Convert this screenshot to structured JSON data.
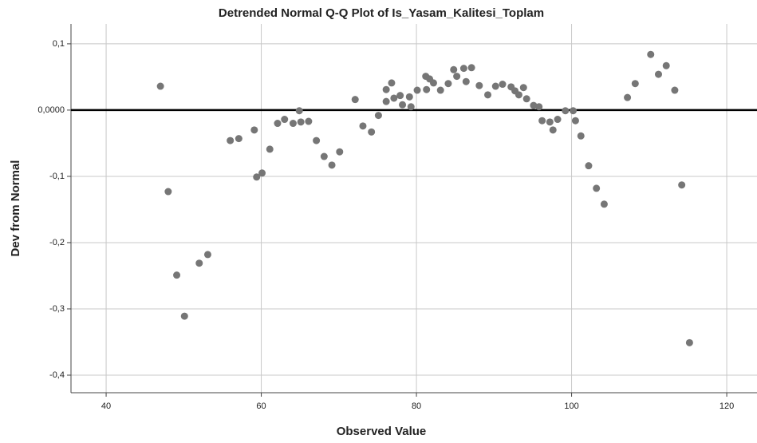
{
  "chart_data": {
    "type": "scatter",
    "title": "Detrended Normal Q-Q Plot of Is_Yasam_Kalitesi_Toplam",
    "x_label": "Observed Value",
    "y_label": "Dev from Normal",
    "color": "#767676",
    "grid": true,
    "reference_y": 0,
    "xlim": [
      35.47,
      123.9
    ],
    "ylim": [
      -0.4265,
      0.13
    ],
    "xticks": [
      40,
      60,
      80,
      100,
      120
    ],
    "yticks": [
      {
        "value": 0.1,
        "label": "0,1"
      },
      {
        "value": 0,
        "label": "0,0000"
      },
      {
        "value": -0.1,
        "label": "-0,1"
      },
      {
        "value": -0.2,
        "label": "-0,2"
      },
      {
        "value": -0.3,
        "label": "-0,3"
      },
      {
        "value": -0.4,
        "label": "-0,4"
      }
    ],
    "x": [
      47.0,
      48.0,
      49.1,
      50.1,
      52.0,
      53.1,
      56.0,
      57.1,
      59.1,
      59.4,
      60.1,
      61.1,
      62.1,
      63.0,
      64.1,
      64.9,
      65.1,
      66.1,
      67.1,
      68.1,
      69.1,
      70.1,
      72.1,
      73.1,
      74.2,
      75.1,
      76.1,
      76.1,
      76.8,
      77.1,
      77.9,
      78.2,
      79.1,
      79.3,
      80.1,
      81.2,
      81.3,
      81.7,
      82.2,
      83.1,
      84.1,
      84.8,
      85.2,
      86.1,
      86.4,
      87.1,
      88.1,
      89.2,
      90.2,
      91.1,
      92.2,
      92.7,
      93.2,
      93.8,
      94.2,
      95.1,
      95.8,
      96.2,
      97.2,
      97.6,
      98.2,
      99.2,
      100.2,
      100.5,
      101.2,
      102.2,
      103.2,
      104.2,
      107.2,
      108.2,
      110.2,
      111.2,
      112.2,
      113.3,
      114.2,
      115.2
    ],
    "values": [
      0.036,
      -0.123,
      -0.249,
      -0.311,
      -0.231,
      -0.218,
      -0.046,
      -0.043,
      -0.03,
      -0.101,
      -0.095,
      -0.059,
      -0.02,
      -0.014,
      -0.02,
      -0.001,
      -0.018,
      -0.017,
      -0.046,
      -0.07,
      -0.083,
      -0.063,
      0.016,
      -0.024,
      -0.033,
      -0.008,
      0.031,
      0.013,
      0.041,
      0.018,
      0.022,
      0.008,
      0.02,
      0.005,
      0.03,
      0.051,
      0.031,
      0.047,
      0.041,
      0.03,
      0.04,
      0.061,
      0.051,
      0.063,
      0.043,
      0.064,
      0.037,
      0.023,
      0.036,
      0.039,
      0.035,
      0.029,
      0.023,
      0.034,
      0.017,
      0.007,
      0.005,
      -0.016,
      -0.018,
      -0.03,
      -0.014,
      -0.001,
      -0.001,
      -0.016,
      -0.039,
      -0.084,
      -0.118,
      -0.142,
      0.019,
      0.04,
      0.084,
      0.054,
      0.067,
      0.03,
      -0.113,
      -0.351
    ]
  }
}
